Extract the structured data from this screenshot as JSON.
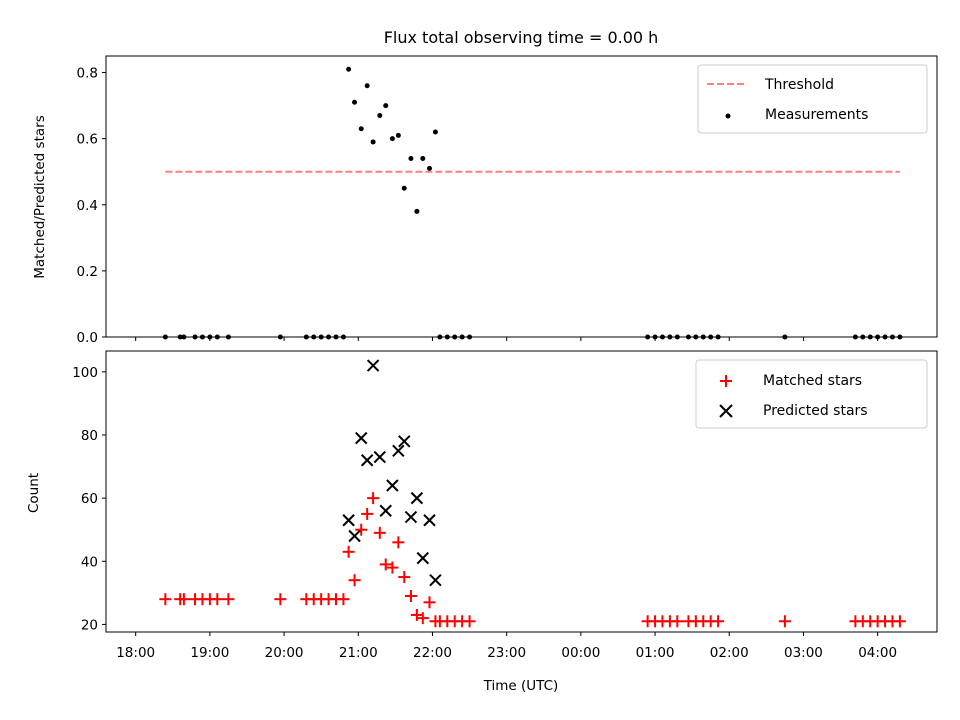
{
  "chart_data": [
    {
      "type": "scatter",
      "title": "Flux total observing time = 0.00 h",
      "xlabel": "",
      "ylabel": "Matched/Predicted stars",
      "ylim": [
        0.0,
        0.85
      ],
      "yticks": [
        0.0,
        0.2,
        0.4,
        0.6,
        0.8
      ],
      "grid": false,
      "legend": "top-right",
      "threshold": {
        "name": "Threshold",
        "value": 0.5,
        "x_start": 18.4,
        "x_end": 28.3,
        "color": "#ff7f7f",
        "style": "dashed"
      },
      "series": [
        {
          "name": "Measurements",
          "color": "#000000",
          "marker": "dot",
          "points": [
            [
              18.4,
              0.0
            ],
            [
              18.6,
              0.0
            ],
            [
              18.65,
              0.0
            ],
            [
              18.8,
              0.0
            ],
            [
              18.9,
              0.0
            ],
            [
              19.0,
              0.0
            ],
            [
              19.1,
              0.0
            ],
            [
              19.25,
              0.0
            ],
            [
              19.95,
              0.0
            ],
            [
              20.3,
              0.0
            ],
            [
              20.4,
              0.0
            ],
            [
              20.5,
              0.0
            ],
            [
              20.6,
              0.0
            ],
            [
              20.7,
              0.0
            ],
            [
              20.8,
              0.0
            ],
            [
              20.87,
              0.81
            ],
            [
              20.95,
              0.71
            ],
            [
              21.04,
              0.63
            ],
            [
              21.12,
              0.76
            ],
            [
              21.2,
              0.59
            ],
            [
              21.29,
              0.67
            ],
            [
              21.37,
              0.7
            ],
            [
              21.46,
              0.6
            ],
            [
              21.54,
              0.61
            ],
            [
              21.62,
              0.45
            ],
            [
              21.71,
              0.54
            ],
            [
              21.79,
              0.38
            ],
            [
              21.87,
              0.54
            ],
            [
              21.96,
              0.51
            ],
            [
              22.04,
              0.62
            ],
            [
              22.1,
              0.0
            ],
            [
              22.2,
              0.0
            ],
            [
              22.3,
              0.0
            ],
            [
              22.4,
              0.0
            ],
            [
              22.5,
              0.0
            ],
            [
              24.9,
              0.0
            ],
            [
              25.0,
              0.0
            ],
            [
              25.1,
              0.0
            ],
            [
              25.2,
              0.0
            ],
            [
              25.3,
              0.0
            ],
            [
              25.45,
              0.0
            ],
            [
              25.55,
              0.0
            ],
            [
              25.65,
              0.0
            ],
            [
              25.75,
              0.0
            ],
            [
              25.85,
              0.0
            ],
            [
              26.75,
              0.0
            ],
            [
              27.7,
              0.0
            ],
            [
              27.8,
              0.0
            ],
            [
              27.9,
              0.0
            ],
            [
              28.0,
              0.0
            ],
            [
              28.1,
              0.0
            ],
            [
              28.2,
              0.0
            ],
            [
              28.3,
              0.0
            ]
          ]
        }
      ]
    },
    {
      "type": "scatter",
      "title": "",
      "xlabel": "Time (UTC)",
      "ylabel": "Count",
      "ylim": [
        17.6,
        106.6
      ],
      "yticks": [
        20,
        40,
        60,
        80,
        100
      ],
      "xlim": [
        17.6,
        28.8
      ],
      "xticks": [
        18,
        19,
        20,
        21,
        22,
        23,
        24,
        25,
        26,
        27,
        28
      ],
      "xticklabels": [
        "18:00",
        "19:00",
        "20:00",
        "21:00",
        "22:00",
        "23:00",
        "00:00",
        "01:00",
        "02:00",
        "03:00",
        "04:00"
      ],
      "grid": false,
      "legend": "top-right",
      "series": [
        {
          "name": "Matched stars",
          "color": "#ff0000",
          "marker": "plus",
          "points": [
            [
              18.4,
              28
            ],
            [
              18.6,
              28
            ],
            [
              18.65,
              28
            ],
            [
              18.8,
              28
            ],
            [
              18.9,
              28
            ],
            [
              19.0,
              28
            ],
            [
              19.1,
              28
            ],
            [
              19.25,
              28
            ],
            [
              19.95,
              28
            ],
            [
              20.3,
              28
            ],
            [
              20.4,
              28
            ],
            [
              20.5,
              28
            ],
            [
              20.6,
              28
            ],
            [
              20.7,
              28
            ],
            [
              20.8,
              28
            ],
            [
              20.87,
              43
            ],
            [
              20.95,
              34
            ],
            [
              21.04,
              50
            ],
            [
              21.12,
              55
            ],
            [
              21.2,
              60
            ],
            [
              21.29,
              49
            ],
            [
              21.37,
              39
            ],
            [
              21.46,
              38
            ],
            [
              21.54,
              46
            ],
            [
              21.62,
              35
            ],
            [
              21.71,
              29
            ],
            [
              21.79,
              23
            ],
            [
              21.87,
              22
            ],
            [
              21.96,
              27
            ],
            [
              22.04,
              21
            ],
            [
              22.1,
              21
            ],
            [
              22.2,
              21
            ],
            [
              22.3,
              21
            ],
            [
              22.4,
              21
            ],
            [
              22.5,
              21
            ],
            [
              24.9,
              21
            ],
            [
              25.0,
              21
            ],
            [
              25.1,
              21
            ],
            [
              25.2,
              21
            ],
            [
              25.3,
              21
            ],
            [
              25.45,
              21
            ],
            [
              25.55,
              21
            ],
            [
              25.65,
              21
            ],
            [
              25.75,
              21
            ],
            [
              25.85,
              21
            ],
            [
              26.75,
              21
            ],
            [
              27.7,
              21
            ],
            [
              27.8,
              21
            ],
            [
              27.9,
              21
            ],
            [
              28.0,
              21
            ],
            [
              28.1,
              21
            ],
            [
              28.2,
              21
            ],
            [
              28.3,
              21
            ]
          ]
        },
        {
          "name": "Predicted stars",
          "color": "#000000",
          "marker": "x",
          "points": [
            [
              20.87,
              53
            ],
            [
              20.95,
              48
            ],
            [
              21.04,
              79
            ],
            [
              21.12,
              72
            ],
            [
              21.2,
              102
            ],
            [
              21.29,
              73
            ],
            [
              21.37,
              56
            ],
            [
              21.46,
              64
            ],
            [
              21.54,
              75
            ],
            [
              21.62,
              78
            ],
            [
              21.71,
              54
            ],
            [
              21.79,
              60
            ],
            [
              21.87,
              41
            ],
            [
              21.96,
              53
            ],
            [
              22.04,
              34
            ]
          ]
        }
      ]
    }
  ]
}
